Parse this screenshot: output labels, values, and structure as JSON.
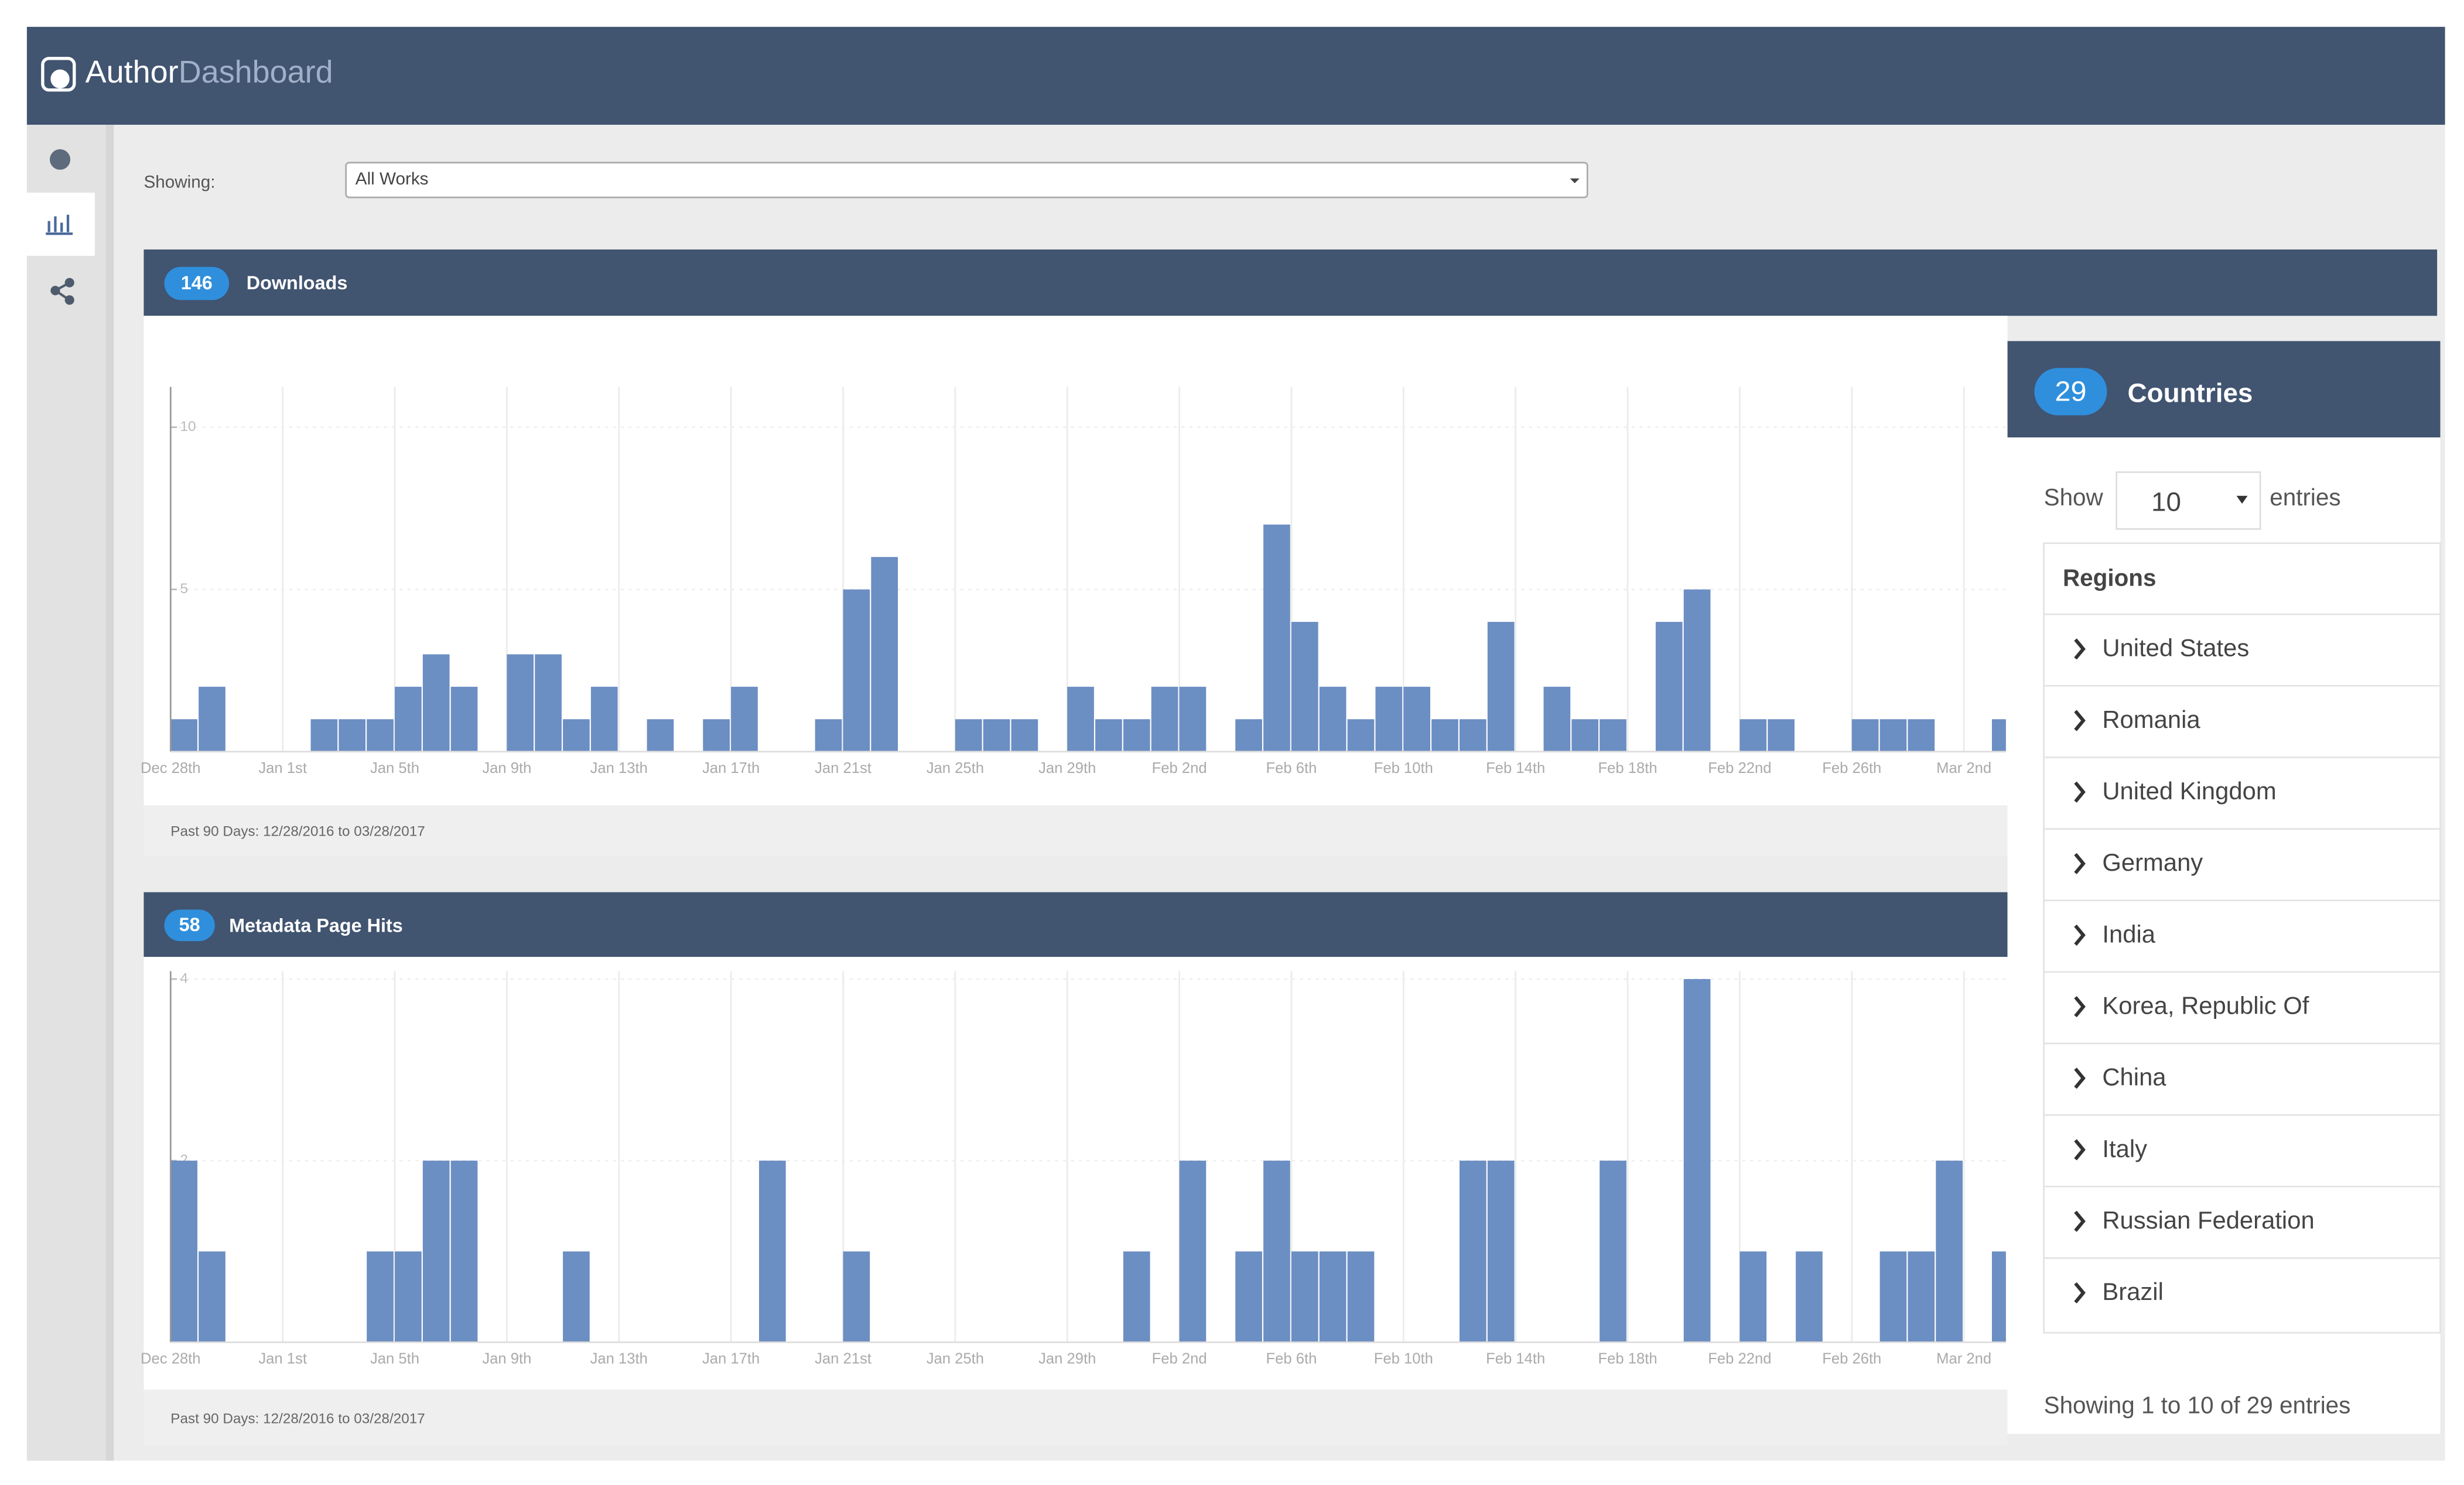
{
  "header": {
    "brand_author": "Author",
    "brand_dashboard": "Dashboard"
  },
  "filter": {
    "label": "Showing:",
    "value": "All Works"
  },
  "panels": [
    {
      "count": 146,
      "title": "Downloads",
      "footer": "Past 90 Days: 12/28/2016 to 03/28/2017",
      "chart": {
        "type": "bar",
        "color": "#6b8ec3",
        "categories": [
          "Dec 28th",
          null,
          null,
          null,
          "Jan 1st",
          null,
          null,
          null,
          "Jan 5th",
          null,
          null,
          null,
          "Jan 9th",
          null,
          null,
          null,
          "Jan 13th",
          null,
          null,
          null,
          "Jan 17th",
          null,
          null,
          null,
          "Jan 21st",
          null,
          null,
          null,
          "Jan 25th",
          null,
          null,
          null,
          "Jan 29th",
          null,
          null,
          null,
          "Feb 2nd",
          null,
          null,
          null,
          "Feb 6th",
          null,
          null,
          null,
          "Feb 10th",
          null,
          null,
          null,
          "Feb 14th",
          null,
          null,
          null,
          "Feb 18th",
          null,
          null,
          null,
          "Feb 22nd",
          null,
          null,
          null,
          "Feb 26th",
          null,
          null,
          null,
          "Mar 2nd",
          null
        ],
        "values": [
          1,
          2,
          0,
          0,
          0,
          1,
          1,
          1,
          2,
          3,
          2,
          0,
          3,
          3,
          1,
          2,
          0,
          1,
          0,
          1,
          2,
          0,
          0,
          1,
          5,
          6,
          0,
          0,
          1,
          1,
          1,
          0,
          2,
          1,
          1,
          2,
          2,
          0,
          1,
          7,
          4,
          2,
          1,
          2,
          2,
          1,
          1,
          4,
          0,
          2,
          1,
          1,
          0,
          4,
          5,
          0,
          1,
          1,
          0,
          0,
          1,
          1,
          1,
          0,
          0,
          1
        ],
        "ylim": [
          0,
          11
        ],
        "yticks": [
          5,
          10
        ]
      }
    },
    {
      "count": 58,
      "title": "Metadata Page Hits",
      "footer": "Past 90 Days: 12/28/2016 to 03/28/2017",
      "chart": {
        "type": "bar",
        "color": "#6b8ec3",
        "categories": [
          "Dec 28th",
          null,
          null,
          null,
          "Jan 1st",
          null,
          null,
          null,
          "Jan 5th",
          null,
          null,
          null,
          "Jan 9th",
          null,
          null,
          null,
          "Jan 13th",
          null,
          null,
          null,
          "Jan 17th",
          null,
          null,
          null,
          "Jan 21st",
          null,
          null,
          null,
          "Jan 25th",
          null,
          null,
          null,
          "Jan 29th",
          null,
          null,
          null,
          "Feb 2nd",
          null,
          null,
          null,
          "Feb 6th",
          null,
          null,
          null,
          "Feb 10th",
          null,
          null,
          null,
          "Feb 14th",
          null,
          null,
          null,
          "Feb 18th",
          null,
          null,
          null,
          "Feb 22nd",
          null,
          null,
          null,
          "Feb 26th",
          null,
          null,
          null,
          "Mar 2nd",
          null
        ],
        "values": [
          2,
          1,
          0,
          0,
          0,
          0,
          0,
          1,
          1,
          2,
          2,
          0,
          0,
          0,
          1,
          0,
          0,
          0,
          0,
          0,
          0,
          2,
          0,
          0,
          1,
          0,
          0,
          0,
          0,
          0,
          0,
          0,
          0,
          0,
          1,
          0,
          2,
          0,
          1,
          2,
          1,
          1,
          1,
          0,
          0,
          0,
          2,
          2,
          0,
          0,
          0,
          2,
          0,
          0,
          4,
          0,
          1,
          0,
          1,
          0,
          0,
          1,
          1,
          2,
          0,
          1
        ],
        "ylim": [
          0,
          4
        ],
        "yticks": [
          2,
          4
        ]
      }
    }
  ],
  "countries": {
    "count": 29,
    "title": "Countries",
    "show_label": "Show",
    "page_size": 10,
    "entries_label": "entries",
    "column": "Regions",
    "rows": [
      "United States",
      "Romania",
      "United Kingdom",
      "Germany",
      "India",
      "Korea, Republic Of",
      "China",
      "Italy",
      "Russian Federation",
      "Brazil"
    ],
    "info": "Showing 1 to 10 of 29 entries"
  }
}
